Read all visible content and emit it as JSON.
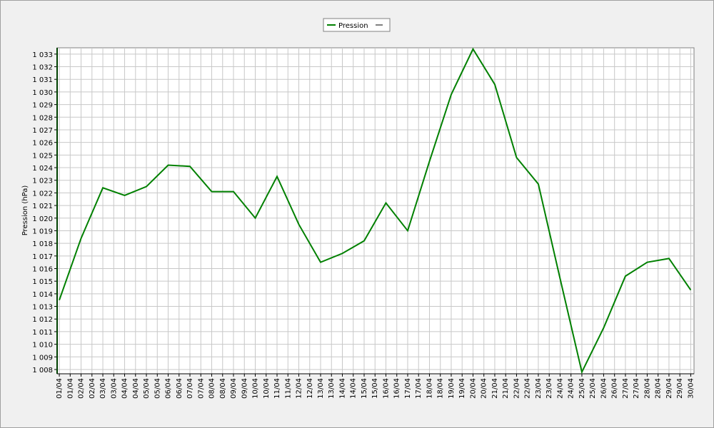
{
  "chart_data": {
    "type": "line",
    "ylabel": "Pression (hPa)",
    "x": [
      1,
      2,
      3,
      4,
      5,
      6,
      7,
      8,
      9,
      10,
      11,
      12,
      13,
      14,
      15,
      16,
      17,
      18,
      19,
      20,
      21,
      22,
      23,
      24,
      25,
      26,
      27,
      28,
      29,
      30
    ],
    "series": [
      {
        "name": "Pression",
        "color": "#008000",
        "values": [
          1013.5,
          1018.4,
          1022.4,
          1021.8,
          1022.5,
          1024.2,
          1024.1,
          1022.1,
          1022.1,
          1020.0,
          1023.3,
          1019.5,
          1016.5,
          1017.2,
          1018.2,
          1021.2,
          1019.0,
          1024.5,
          1029.8,
          1033.4,
          1030.6,
          1024.8,
          1022.7,
          1015.2,
          1007.8,
          1011.3,
          1015.4,
          1016.5,
          1016.8,
          1014.3
        ]
      }
    ],
    "xlim": [
      0.9,
      30.15
    ],
    "ylim": [
      1007.66,
      1033.5
    ],
    "xticks": [
      {
        "value": 1,
        "label": "01/04"
      },
      {
        "value": 1.5,
        "label": "01/04"
      },
      {
        "value": 2,
        "label": "02/04"
      },
      {
        "value": 2.5,
        "label": "02/04"
      },
      {
        "value": 3,
        "label": "03/04"
      },
      {
        "value": 3.5,
        "label": "03/04"
      },
      {
        "value": 4,
        "label": "04/04"
      },
      {
        "value": 4.5,
        "label": "04/04"
      },
      {
        "value": 5,
        "label": "05/04"
      },
      {
        "value": 5.5,
        "label": "05/04"
      },
      {
        "value": 6,
        "label": "06/04"
      },
      {
        "value": 6.5,
        "label": "06/04"
      },
      {
        "value": 7,
        "label": "07/04"
      },
      {
        "value": 7.5,
        "label": "07/04"
      },
      {
        "value": 8,
        "label": "08/04"
      },
      {
        "value": 8.5,
        "label": "08/04"
      },
      {
        "value": 9,
        "label": "09/04"
      },
      {
        "value": 9.5,
        "label": "09/04"
      },
      {
        "value": 10,
        "label": "10/04"
      },
      {
        "value": 10.5,
        "label": "10/04"
      },
      {
        "value": 11,
        "label": "11/04"
      },
      {
        "value": 11.5,
        "label": "11/04"
      },
      {
        "value": 12,
        "label": "12/04"
      },
      {
        "value": 12.5,
        "label": "12/04"
      },
      {
        "value": 13,
        "label": "13/04"
      },
      {
        "value": 13.5,
        "label": "13/04"
      },
      {
        "value": 14,
        "label": "14/04"
      },
      {
        "value": 14.5,
        "label": "14/04"
      },
      {
        "value": 15,
        "label": "15/04"
      },
      {
        "value": 15.5,
        "label": "15/04"
      },
      {
        "value": 16,
        "label": "16/04"
      },
      {
        "value": 16.5,
        "label": "16/04"
      },
      {
        "value": 17,
        "label": "17/04"
      },
      {
        "value": 17.5,
        "label": "17/04"
      },
      {
        "value": 18,
        "label": "18/04"
      },
      {
        "value": 18.5,
        "label": "18/04"
      },
      {
        "value": 19,
        "label": "19/04"
      },
      {
        "value": 19.5,
        "label": "19/04"
      },
      {
        "value": 20,
        "label": "20/04"
      },
      {
        "value": 20.5,
        "label": "20/04"
      },
      {
        "value": 21,
        "label": "21/04"
      },
      {
        "value": 21.5,
        "label": "21/04"
      },
      {
        "value": 22,
        "label": "22/04"
      },
      {
        "value": 22.5,
        "label": "22/04"
      },
      {
        "value": 23,
        "label": "23/04"
      },
      {
        "value": 23.5,
        "label": "23/04"
      },
      {
        "value": 24,
        "label": "24/04"
      },
      {
        "value": 24.5,
        "label": "24/04"
      },
      {
        "value": 25,
        "label": "25/04"
      },
      {
        "value": 25.5,
        "label": "25/04"
      },
      {
        "value": 26,
        "label": "26/04"
      },
      {
        "value": 26.5,
        "label": "26/04"
      },
      {
        "value": 27,
        "label": "27/04"
      },
      {
        "value": 27.5,
        "label": "27/04"
      },
      {
        "value": 28,
        "label": "28/04"
      },
      {
        "value": 28.5,
        "label": "28/04"
      },
      {
        "value": 29,
        "label": "29/04"
      },
      {
        "value": 29.5,
        "label": "29/04"
      },
      {
        "value": 30,
        "label": "30/04"
      }
    ],
    "yticks": [
      {
        "value": 1008,
        "label": "1 008"
      },
      {
        "value": 1009,
        "label": "1 009"
      },
      {
        "value": 1010,
        "label": "1 010"
      },
      {
        "value": 1011,
        "label": "1 011"
      },
      {
        "value": 1012,
        "label": "1 012"
      },
      {
        "value": 1013,
        "label": "1 013"
      },
      {
        "value": 1014,
        "label": "1 014"
      },
      {
        "value": 1015,
        "label": "1 015"
      },
      {
        "value": 1016,
        "label": "1 016"
      },
      {
        "value": 1017,
        "label": "1 017"
      },
      {
        "value": 1018,
        "label": "1 018"
      },
      {
        "value": 1019,
        "label": "1 019"
      },
      {
        "value": 1020,
        "label": "1 020"
      },
      {
        "value": 1021,
        "label": "1 021"
      },
      {
        "value": 1022,
        "label": "1 022"
      },
      {
        "value": 1023,
        "label": "1 023"
      },
      {
        "value": 1024,
        "label": "1 024"
      },
      {
        "value": 1025,
        "label": "1 025"
      },
      {
        "value": 1026,
        "label": "1 026"
      },
      {
        "value": 1027,
        "label": "1 027"
      },
      {
        "value": 1028,
        "label": "1 028"
      },
      {
        "value": 1029,
        "label": "1 029"
      },
      {
        "value": 1030,
        "label": "1 030"
      },
      {
        "value": 1031,
        "label": "1 031"
      },
      {
        "value": 1032,
        "label": "1 032"
      },
      {
        "value": 1033,
        "label": "1 033"
      }
    ],
    "grid": true,
    "legend": "top"
  }
}
